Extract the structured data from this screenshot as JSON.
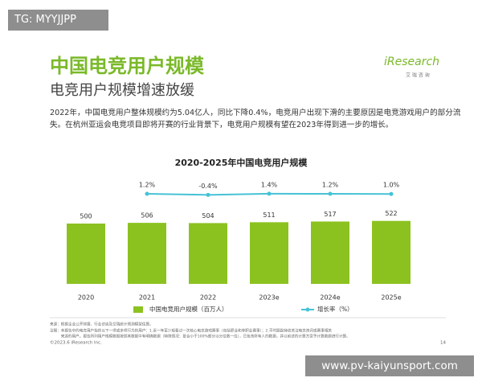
{
  "header": {
    "tag": "TG: MYYJJPP",
    "title": "中国电竞用户规模",
    "subtitle": "电竞用户规模增速放缓",
    "logo": "iResearch",
    "logo_sub": "艾 瑞 咨 询"
  },
  "body": {
    "paragraph_lines": [
      "2022年，中国电竞用户整体规模约为5.04亿人，同比下降0.4%，电竞用户出现下滑的主要原因是电竞游戏用户的部分流",
      "失。在杭州亚运会电竞项目即将开赛的行业背景下，电竞用户规模有望在2023年得到进一步的增长。"
    ]
  },
  "chart_data": {
    "type": "bar",
    "title": "2020-2025年中国电竞用户规模",
    "categories": [
      "2020",
      "2021",
      "2022",
      "2023e",
      "2024e",
      "2025e"
    ],
    "series": [
      {
        "name": "中国电竞用户规模（百万人）",
        "color": "#8cc220",
        "type": "bar",
        "values": [
          500,
          506,
          504,
          511,
          517,
          522
        ]
      },
      {
        "name": "增长率（%）",
        "color": "#46c2d6",
        "type": "line",
        "values": [
          null,
          1.2,
          -0.4,
          1.4,
          1.2,
          1.0
        ],
        "value_labels": [
          null,
          "1.2%",
          "-0.4%",
          "1.4%",
          "1.2%",
          "1.0%"
        ]
      }
    ]
  },
  "footer": {
    "notes": [
      "来源：根据企业公开财报、行业访谈及艾瑞统计预测模型估算。",
      "注释：本报告中的电竞用户指的以下一项或多项行为的用户：1.近一年至少观看过一次核心电竞游戏赛事（包括职业和非职业赛事）；2.平时跟踪持续关注电竞资讯或赛事相关",
      "　　　来源的用户。报告所列用户规模数据按照其数据中有明确数据（特殊情况：复合小于100%部分以分位数一位），已包含所有人的数据，并以前述的计算方案予计算数据进行计算。"
    ],
    "copyright": "©2023.6 iResearch Inc.",
    "page": "14"
  },
  "watermark": "www.pv-kaiyunsport.com"
}
